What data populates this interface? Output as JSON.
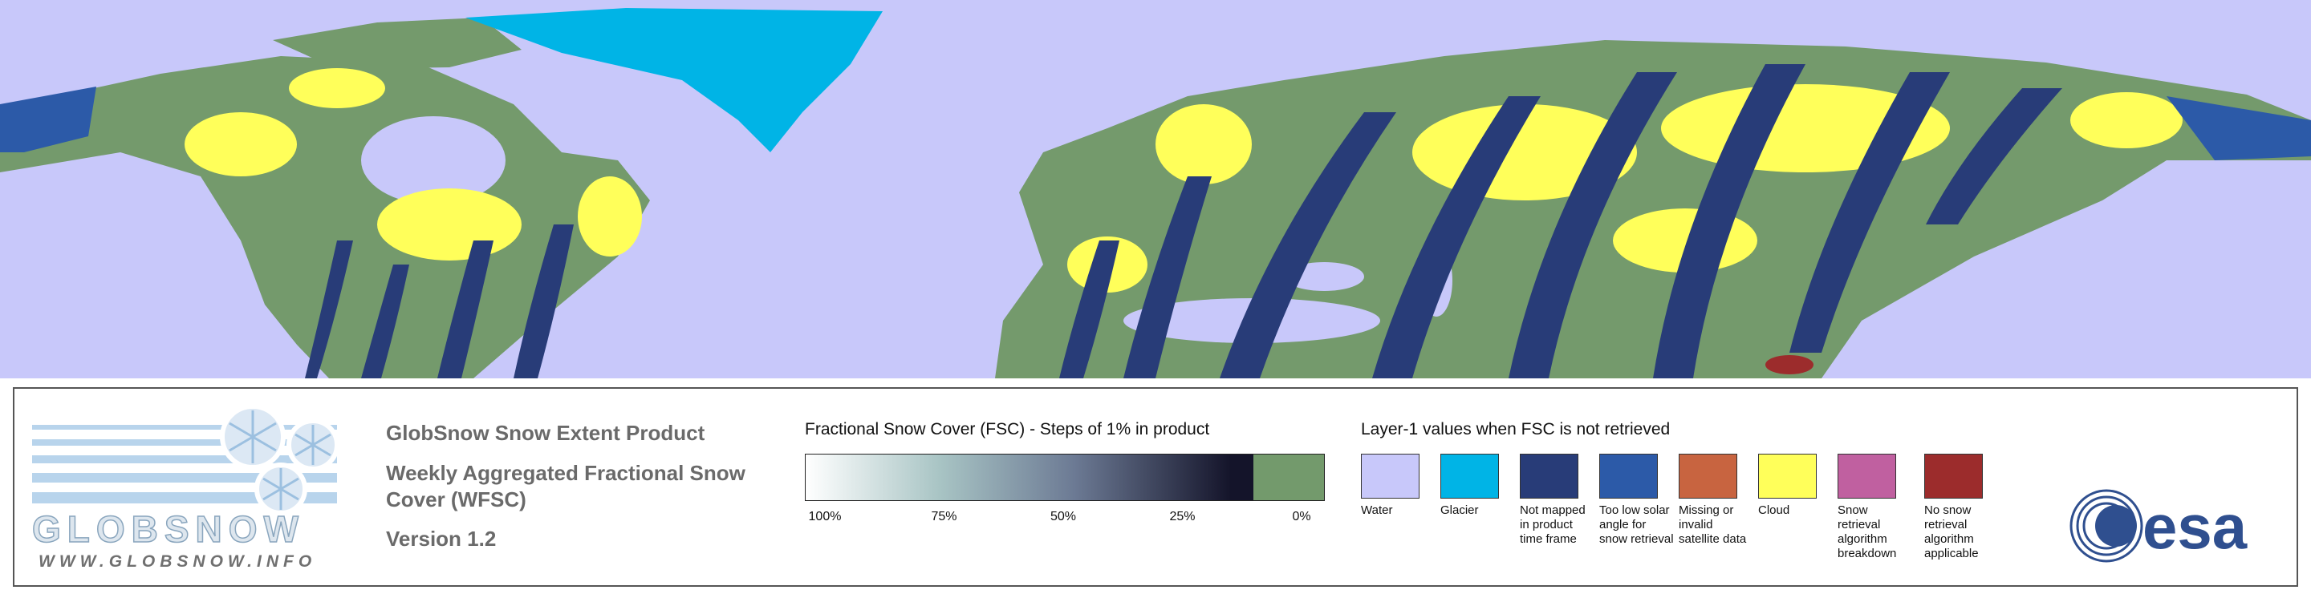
{
  "logo": {
    "name": "GLOBSNOW",
    "url": "WWW.GLOBSNOW.INFO"
  },
  "product": {
    "title": "GlobSnow Snow Extent Product",
    "subtitle": "Weekly Aggregated Fractional Snow Cover (WFSC)",
    "version": "Version 1.2"
  },
  "fsc_legend": {
    "title": "Fractional Snow Cover (FSC) - Steps of 1% in product",
    "ticks": [
      "100%",
      "75%",
      "50%",
      "25%",
      "0%"
    ]
  },
  "layer1_legend": {
    "title": "Layer-1 values when FSC is not retrieved",
    "items": [
      {
        "label": "Water",
        "color": "#c8c8fa"
      },
      {
        "label": "Glacier",
        "color": "#00b4e6"
      },
      {
        "label": "Not mapped in product time frame",
        "color": "#283c78"
      },
      {
        "label": "Too low solar angle for snow retrieval",
        "color": "#2c5aa8"
      },
      {
        "label": "Missing or invalid satellite data",
        "color": "#c86440"
      },
      {
        "label": "Cloud",
        "color": "#ffff5a"
      },
      {
        "label": "Snow retrieval algorithm breakdown",
        "color": "#c060a0"
      },
      {
        "label": "No snow retrieval algorithm applicable",
        "color": "#9c2c2c"
      }
    ]
  },
  "esa_logo": "esa"
}
